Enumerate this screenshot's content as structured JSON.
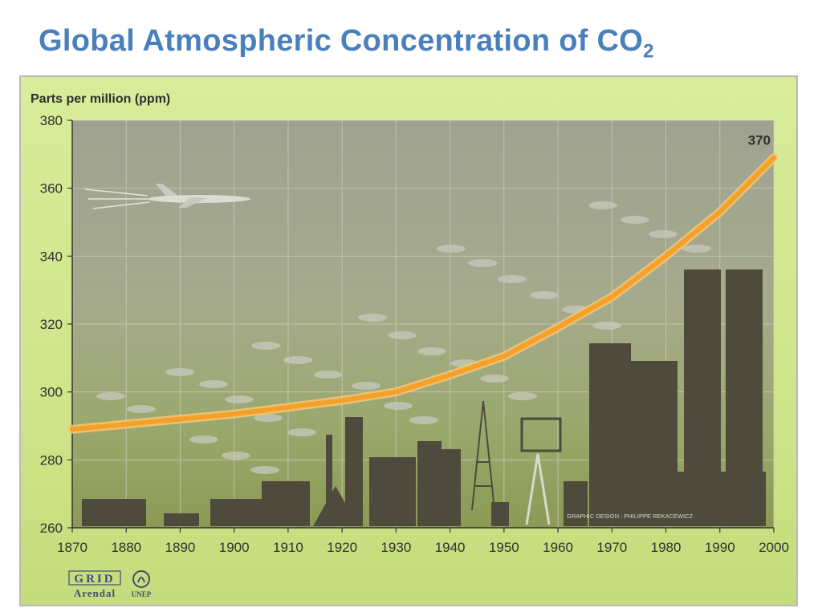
{
  "slide": {
    "title_main": "Global Atmospheric Concentration of CO",
    "title_sub": "2"
  },
  "chart_data": {
    "type": "line",
    "title": "",
    "ylabel": "Parts per million (ppm)",
    "xlabel": "",
    "x": [
      1870,
      1880,
      1890,
      1900,
      1910,
      1920,
      1930,
      1940,
      1950,
      1960,
      1970,
      1980,
      1990,
      2000
    ],
    "series": [
      {
        "values": [
          289,
          290.5,
          292,
          293.5,
          295.5,
          297.5,
          300,
          305,
          310.5,
          319,
          328,
          340,
          353,
          369
        ]
      }
    ],
    "xlim": [
      1870,
      2000
    ],
    "ylim": [
      260,
      380
    ],
    "yticks": [
      260,
      280,
      300,
      320,
      340,
      360,
      380
    ],
    "xticks": [
      1870,
      1880,
      1890,
      1900,
      1910,
      1920,
      1930,
      1940,
      1950,
      1960,
      1970,
      1980,
      1990,
      2000
    ],
    "annotations": [
      {
        "x": 2000,
        "y": 370,
        "text": "370"
      }
    ],
    "grid": true,
    "line_color": "#f5a028"
  },
  "credits": {
    "design": "GRAPHIC DESIGN : PHILIPPE REKACEWICZ",
    "logo_grid": "GRID",
    "logo_arendal": "Arendal",
    "logo_unep": "UNEP"
  }
}
